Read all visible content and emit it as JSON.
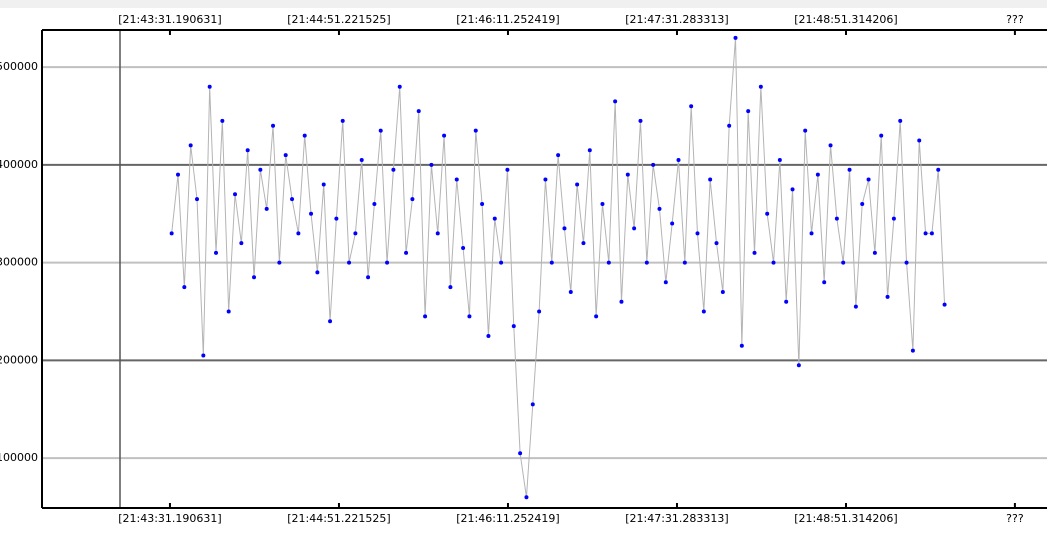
{
  "chart_data": {
    "type": "line",
    "x": [
      78212,
      78215,
      78218,
      78221,
      78224,
      78227,
      78230,
      78233,
      78236,
      78239,
      78242,
      78245,
      78248,
      78251,
      78254,
      78257,
      78260,
      78263,
      78266,
      78269,
      78272,
      78275,
      78278,
      78281,
      78284,
      78287,
      78290,
      78293,
      78296,
      78299,
      78302,
      78305,
      78308,
      78311,
      78314,
      78317,
      78320,
      78323,
      78326,
      78329,
      78332,
      78335,
      78338,
      78341,
      78344,
      78347,
      78350,
      78353,
      78356,
      78359,
      78362,
      78365,
      78368,
      78371,
      78374,
      78377,
      78380,
      78383,
      78386,
      78389,
      78392,
      78395,
      78398,
      78401,
      78404,
      78407,
      78410,
      78413,
      78416,
      78419,
      78422,
      78425,
      78428,
      78431,
      78434,
      78437,
      78440,
      78443,
      78446,
      78449,
      78452,
      78455,
      78458,
      78461,
      78464,
      78467,
      78470,
      78473,
      78476,
      78479,
      78482,
      78485,
      78488,
      78491,
      78494,
      78497,
      78500,
      78503,
      78506,
      78509,
      78512,
      78515,
      78518,
      78521,
      78524,
      78527,
      78530,
      78533,
      78536,
      78539,
      78542,
      78545,
      78548,
      78551,
      78554,
      78557,
      78560,
      78563,
      78566,
      78569,
      78572,
      78575,
      78578
    ],
    "series": [
      {
        "color": "#0000ff",
        "line_color": "#b4b4b4",
        "values": [
          330000,
          390000,
          275000,
          420000,
          365000,
          205000,
          480000,
          310000,
          445000,
          250000,
          370000,
          320000,
          415000,
          285000,
          395000,
          355000,
          440000,
          300000,
          410000,
          365000,
          330000,
          430000,
          350000,
          290000,
          380000,
          240000,
          345000,
          445000,
          300000,
          330000,
          405000,
          285000,
          360000,
          435000,
          300000,
          395000,
          480000,
          310000,
          365000,
          455000,
          245000,
          400000,
          330000,
          430000,
          275000,
          385000,
          315000,
          245000,
          435000,
          360000,
          225000,
          345000,
          300000,
          395000,
          235000,
          105000,
          60000,
          155000,
          250000,
          385000,
          300000,
          410000,
          335000,
          270000,
          380000,
          320000,
          415000,
          245000,
          360000,
          300000,
          465000,
          260000,
          390000,
          335000,
          445000,
          300000,
          400000,
          355000,
          280000,
          340000,
          405000,
          300000,
          460000,
          330000,
          250000,
          385000,
          320000,
          270000,
          440000,
          530000,
          215000,
          455000,
          310000,
          480000,
          350000,
          300000,
          405000,
          260000,
          375000,
          195000,
          435000,
          330000,
          390000,
          280000,
          420000,
          345000,
          300000,
          395000,
          255000,
          360000,
          385000,
          310000,
          430000,
          265000,
          345000,
          445000,
          300000,
          210000,
          425000,
          330000,
          330000,
          395000,
          257000
        ]
      }
    ],
    "xlim": [
      78150.6,
      78626.5
    ],
    "xticks": [
      {
        "value": 78211.190631,
        "label": "[21:43:31.190631]"
      },
      {
        "value": 78291.221525,
        "label": "[21:44:51.221525]"
      },
      {
        "value": 78371.252419,
        "label": "[21:46:11.252419]"
      },
      {
        "value": 78451.283313,
        "label": "[21:47:31.283313]"
      },
      {
        "value": 78531.314206,
        "label": "[21:48:51.314206]"
      },
      {
        "value": 78611.3,
        "label": "???"
      }
    ],
    "ylim": [
      49000,
      538000
    ],
    "yticks": [
      100000,
      200000,
      300000,
      400000,
      500000
    ],
    "major_grid": [
      200000,
      400000
    ],
    "grid": true
  }
}
